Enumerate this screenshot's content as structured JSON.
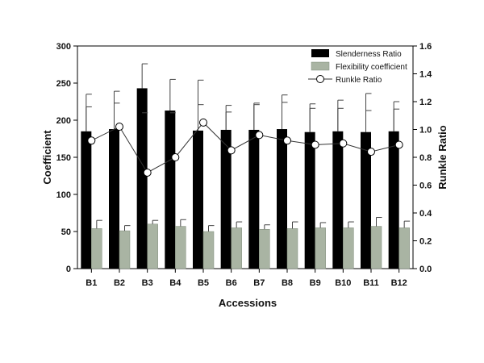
{
  "chart_data": {
    "type": "bar",
    "categories": [
      "B1",
      "B2",
      "B3",
      "B4",
      "B5",
      "B6",
      "B7",
      "B8",
      "B9",
      "B10",
      "B11",
      "B12"
    ],
    "xlabel": "Accessions",
    "ylabel": "Coefficient",
    "y2label": "Runkle Ratio",
    "ylim": [
      0,
      300
    ],
    "y2lim": [
      0,
      1.6
    ],
    "yticks": [
      0,
      50,
      100,
      150,
      200,
      250,
      300
    ],
    "y2ticks": [
      0.0,
      0.2,
      0.4,
      0.6,
      0.8,
      1.0,
      1.2,
      1.4,
      1.6
    ],
    "grid": false,
    "legend_position": "top-right",
    "series": [
      {
        "name": "Slenderness Ratio",
        "kind": "bar",
        "axis": "left",
        "color": "#000000",
        "values": [
          185,
          188,
          243,
          213,
          186,
          187,
          187,
          188,
          184,
          185,
          184,
          185
        ],
        "error_upper": [
          235,
          239,
          276,
          255,
          254,
          220,
          223,
          234,
          222,
          227,
          236,
          225
        ],
        "error_lower": [
          218,
          223,
          210,
          210,
          221,
          211,
          221,
          224,
          216,
          216,
          213,
          215
        ]
      },
      {
        "name": "Flexibility coefficient",
        "kind": "bar",
        "axis": "left",
        "color": "#a9b4a3",
        "values": [
          54,
          51,
          60,
          57,
          50,
          55,
          53,
          54,
          55,
          55,
          57,
          55
        ],
        "error_upper": [
          65,
          58,
          65,
          66,
          58,
          63,
          59,
          63,
          62,
          63,
          69,
          64
        ]
      },
      {
        "name": "Runkle Ratio",
        "kind": "line",
        "axis": "right",
        "color": "#000000",
        "marker": "open-circle",
        "values": [
          0.92,
          1.02,
          0.69,
          0.8,
          1.05,
          0.85,
          0.96,
          0.92,
          0.89,
          0.9,
          0.84,
          0.89
        ]
      }
    ]
  }
}
